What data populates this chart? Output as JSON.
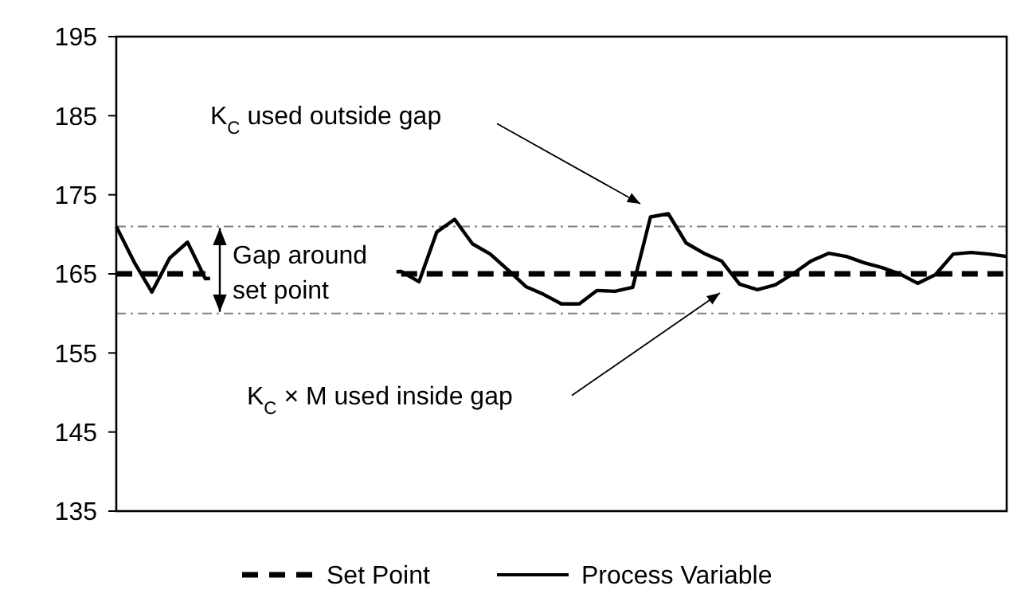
{
  "chart_data": {
    "type": "line",
    "ylim": [
      135,
      195
    ],
    "yticks": [
      135,
      145,
      155,
      165,
      175,
      185,
      195
    ],
    "tick_labels": "y",
    "legend": "bottom",
    "grid": false,
    "categories": [
      null,
      null,
      null,
      null,
      null,
      null,
      null,
      null,
      null,
      null,
      null,
      null,
      null,
      null,
      null,
      null,
      null,
      null,
      null,
      null,
      null,
      null,
      null,
      null,
      null,
      null,
      null,
      null,
      null,
      null,
      null,
      null,
      null,
      null,
      null,
      null,
      null,
      null,
      null,
      null,
      null,
      null,
      null,
      null,
      null,
      null,
      null,
      null,
      null,
      null,
      null
    ],
    "series": [
      {
        "name": "Set Point",
        "color": "#000000",
        "line_style": "dashed",
        "values": [
          165,
          165,
          165,
          165,
          165,
          165,
          null,
          null,
          null,
          null,
          null,
          null,
          null,
          null,
          null,
          null,
          165,
          165,
          165,
          165,
          165,
          165,
          165,
          165,
          165,
          165,
          165,
          165,
          165,
          165,
          165,
          165,
          165,
          165,
          165,
          165,
          165,
          165,
          165,
          165,
          165,
          165,
          165,
          165,
          165,
          165,
          165,
          165,
          165,
          165,
          165
        ]
      },
      {
        "name": "Process Variable",
        "color": "#000000",
        "line_style": "solid",
        "values": [
          171,
          166.5,
          162.7,
          167,
          169,
          164.4,
          null,
          null,
          null,
          null,
          null,
          null,
          null,
          null,
          null,
          null,
          165.3,
          164,
          170.3,
          171.9,
          168.8,
          167.5,
          165.5,
          163.4,
          162.4,
          161.2,
          161.2,
          162.9,
          162.8,
          163.3,
          172.2,
          172.6,
          168.9,
          167.6,
          166.6,
          163.7,
          163,
          163.6,
          165,
          166.6,
          167.6,
          167.2,
          166.4,
          165.8,
          165,
          163.8,
          164.9,
          167.5,
          167.7,
          167.5,
          167.2
        ]
      }
    ],
    "ref_lines": [
      {
        "axis": "y",
        "value": 171,
        "color": "#808080"
      },
      {
        "axis": "y",
        "value": 160,
        "color": "#808080"
      }
    ],
    "annotations": [
      "K$_{C}$ used outside gap",
      "K$_{C}$ × M used inside gap",
      "Gap around set point"
    ]
  }
}
